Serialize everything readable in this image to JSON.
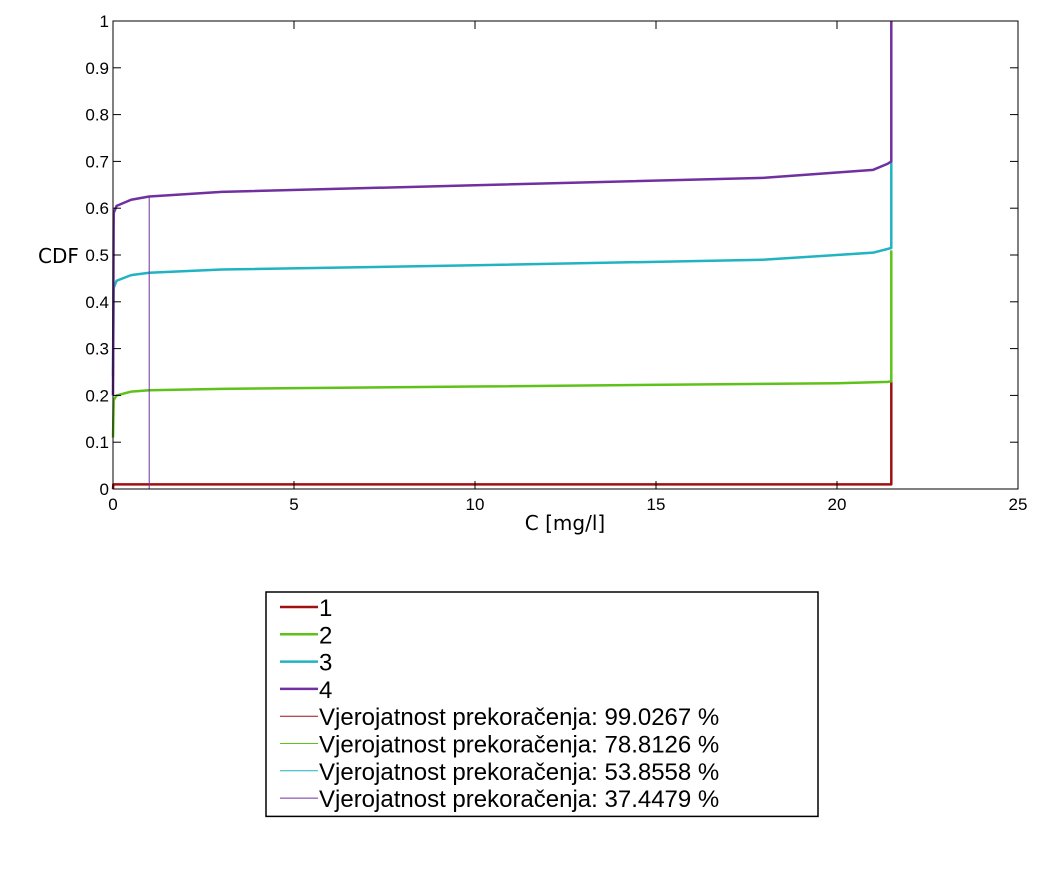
{
  "chart_data": {
    "type": "line",
    "xlabel": "C [mg/l]",
    "ylabel": "CDF",
    "xlim": [
      0,
      25
    ],
    "ylim": [
      0,
      1
    ],
    "x_ticks": [
      "0",
      "5",
      "10",
      "15",
      "20",
      "25"
    ],
    "y_ticks": [
      "0",
      "0.1",
      "0.2",
      "0.3",
      "0.4",
      "0.5",
      "0.6",
      "0.7",
      "0.8",
      "0.9",
      "1"
    ],
    "grid": false,
    "legend_position": "bottom-center",
    "series": [
      {
        "name": "1",
        "color": "#a01010",
        "width": "thick",
        "x": [
          0,
          0.01,
          21.5,
          21.5
        ],
        "y": [
          0,
          0.01,
          0.01,
          0.23
        ]
      },
      {
        "name": "2",
        "color": "#5fc21a",
        "width": "thick",
        "x": [
          0,
          0.02,
          0.1,
          0.5,
          1,
          3,
          10,
          20,
          21.4,
          21.5,
          21.5
        ],
        "y": [
          0.11,
          0.19,
          0.2,
          0.208,
          0.211,
          0.214,
          0.219,
          0.226,
          0.229,
          0.23,
          0.51
        ]
      },
      {
        "name": "3",
        "color": "#21b3c2",
        "width": "thick",
        "x": [
          0,
          0.02,
          0.1,
          0.5,
          1,
          3,
          10,
          18,
          21,
          21.5,
          21.5
        ],
        "y": [
          0.24,
          0.43,
          0.445,
          0.457,
          0.462,
          0.469,
          0.478,
          0.49,
          0.505,
          0.515,
          0.7
        ]
      },
      {
        "name": "4",
        "color": "#7030a0",
        "width": "thick",
        "x": [
          0,
          0.02,
          0.1,
          0.5,
          1,
          3,
          10,
          18,
          21,
          21.4,
          21.5,
          21.5
        ],
        "y": [
          0.2,
          0.59,
          0.605,
          0.618,
          0.625,
          0.635,
          0.649,
          0.665,
          0.682,
          0.695,
          0.7,
          1.0
        ]
      },
      {
        "name": "Vjerojatnost prekoračenja: 99.0267 %",
        "color": "#a01010",
        "width": "thin",
        "x": [],
        "y": []
      },
      {
        "name": "Vjerojatnost prekoračenja: 78.8126 %",
        "color": "#5fc21a",
        "width": "thin",
        "x": [],
        "y": []
      },
      {
        "name": "Vjerojatnost prekoračenja: 53.8558 %",
        "color": "#21b3c2",
        "width": "thin",
        "x": [],
        "y": []
      },
      {
        "name": "Vjerojatnost prekoračenja: 37.4479 %",
        "color": "#7030a0",
        "width": "thin",
        "x": [
          1,
          1
        ],
        "y": [
          0,
          0.625
        ]
      }
    ]
  }
}
